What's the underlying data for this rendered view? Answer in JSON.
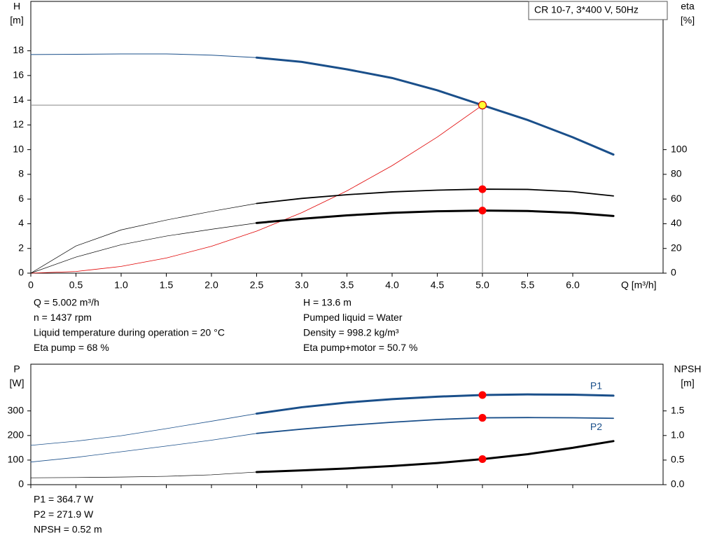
{
  "chart_data": [
    {
      "type": "line",
      "title": "CR 10-7, 3*400 V, 50Hz",
      "ylabel": [
        "H",
        "[m]"
      ],
      "y2label": [
        "eta",
        "[%]"
      ],
      "xlabel": "Q [m³/h]",
      "xlim": [
        0,
        7
      ],
      "xticks": [
        0,
        0.5,
        {
          "value": 1,
          "label": "1.0"
        },
        1.5,
        {
          "value": 2,
          "label": "2.0"
        },
        2.5,
        {
          "value": 3,
          "label": "3.0"
        },
        3.5,
        {
          "value": 4,
          "label": "4.0"
        },
        4.5,
        {
          "value": 5,
          "label": "5.0"
        },
        5.5,
        {
          "value": 6,
          "label": "6.0"
        }
      ],
      "xtick_labels": true,
      "ylim": [
        0,
        22
      ],
      "yticks": [
        0,
        2,
        4,
        6,
        8,
        10,
        12,
        14,
        16,
        18
      ],
      "y2lim": [
        0,
        220
      ],
      "y2ticks": [
        0,
        20,
        40,
        60,
        80,
        100
      ],
      "series": [
        {
          "color": "#1a4f8a",
          "width": 1,
          "x": [
            0,
            0.5,
            1,
            1.5,
            2,
            2.5
          ],
          "values": [
            17.7,
            17.72,
            17.75,
            17.75,
            17.65,
            17.45
          ]
        },
        {
          "color": "#1a4f8a",
          "width": 3,
          "x": [
            2.5,
            3,
            3.5,
            4,
            4.5,
            5,
            5.5,
            6,
            6.45
          ],
          "values": [
            17.45,
            17.1,
            16.5,
            15.8,
            14.8,
            13.6,
            12.4,
            11.0,
            9.6
          ]
        },
        {
          "color": "#e00000",
          "width": 0.8,
          "x": [
            0,
            0.5,
            1,
            1.5,
            2,
            2.5,
            3,
            3.5,
            4,
            4.5,
            5
          ],
          "values": [
            0,
            0.136,
            0.544,
            1.224,
            2.176,
            3.4,
            4.896,
            6.664,
            8.704,
            11.016,
            13.6
          ]
        },
        {
          "color": "#000000",
          "width": 0.7,
          "axis": "y2",
          "x": [
            0,
            0.5,
            1,
            1.5,
            2,
            2.5
          ],
          "values": [
            0,
            22,
            35,
            43,
            50,
            56.4
          ]
        },
        {
          "color": "#000000",
          "width": 1.8,
          "axis": "y2",
          "x": [
            2.5,
            3,
            3.5,
            4,
            4.5,
            5,
            5.5,
            6,
            6.45
          ],
          "values": [
            56.4,
            60.5,
            63.5,
            65.8,
            67.2,
            68,
            67.8,
            66,
            62.5
          ]
        },
        {
          "color": "#000000",
          "width": 0.7,
          "axis": "y2",
          "x": [
            0,
            0.5,
            1,
            1.5,
            2,
            2.5
          ],
          "values": [
            0,
            13,
            23,
            30,
            35.5,
            40.6
          ]
        },
        {
          "color": "#000000",
          "width": 3,
          "axis": "y2",
          "x": [
            2.5,
            3,
            3.5,
            4,
            4.5,
            5,
            5.5,
            6,
            6.45
          ],
          "values": [
            40.6,
            44,
            46.8,
            48.8,
            50.1,
            50.7,
            50.3,
            48.8,
            46.3
          ]
        }
      ],
      "points": [
        {
          "x": 5.0,
          "y": 13.6,
          "color": "#ffff33",
          "stroke": "#d00000",
          "crosshair": true
        },
        {
          "x": 5.0,
          "y": 68,
          "axis": "y2",
          "color": "#ff0000"
        },
        {
          "x": 5.0,
          "y": 50.7,
          "axis": "y2",
          "color": "#ff0000"
        }
      ],
      "info_left": [
        "Q = 5.002 m³/h",
        "n = 1437 rpm",
        "Liquid temperature during operation = 20 °C",
        "Eta pump = 68 %"
      ],
      "info_right": [
        "H = 13.6 m",
        "Pumped liquid = Water",
        "Density = 998.2 kg/m³",
        "Eta pump+motor = 50.7 %"
      ]
    },
    {
      "type": "line",
      "ylabel": [
        "P",
        "[W]"
      ],
      "y2label": [
        "NPSH",
        "[m]"
      ],
      "xlim": [
        0,
        7
      ],
      "xticks": [
        0,
        0.5,
        1,
        1.5,
        2,
        2.5,
        3,
        3.5,
        4,
        4.5,
        5,
        5.5,
        6
      ],
      "xtick_labels": false,
      "ylim": [
        0,
        490
      ],
      "yticks": [
        0,
        100,
        200,
        300
      ],
      "y2lim": [
        0,
        2.45
      ],
      "y2ticks": [
        {
          "value": 0,
          "label": "0.0"
        },
        0.5,
        {
          "value": 1,
          "label": "1.0"
        },
        1.5
      ],
      "series": [
        {
          "color": "#1a4f8a",
          "width": 0.8,
          "x": [
            0,
            0.5,
            1,
            1.5,
            2,
            2.5
          ],
          "values": [
            160,
            177,
            199,
            228,
            258,
            289
          ]
        },
        {
          "name": "P1",
          "label_side": "above",
          "color": "#1a4f8a",
          "width": 3,
          "x": [
            2.5,
            3,
            3.5,
            4,
            4.5,
            5,
            5.5,
            6,
            6.45
          ],
          "values": [
            289,
            315,
            334,
            348,
            358,
            364.7,
            367,
            366,
            362
          ]
        },
        {
          "color": "#1a4f8a",
          "width": 0.8,
          "x": [
            0,
            0.5,
            1,
            1.5,
            2,
            2.5
          ],
          "values": [
            92,
            111,
            134,
            157,
            181,
            208.5
          ]
        },
        {
          "name": "P2",
          "label_side": "below",
          "color": "#1a4f8a",
          "width": 1.8,
          "x": [
            2.5,
            3,
            3.5,
            4,
            4.5,
            5,
            5.5,
            6,
            6.45
          ],
          "values": [
            208.5,
            226,
            241,
            254,
            265,
            271.9,
            273,
            272,
            270
          ]
        },
        {
          "color": "#000000",
          "width": 0.7,
          "axis": "y2",
          "x": [
            0,
            0.5,
            1,
            1.5,
            2,
            2.5
          ],
          "values": [
            0.14,
            0.145,
            0.155,
            0.17,
            0.2,
            0.257
          ]
        },
        {
          "color": "#000000",
          "width": 3,
          "axis": "y2",
          "x": [
            2.5,
            3,
            3.5,
            4,
            4.5,
            5,
            5.5,
            6,
            6.45
          ],
          "values": [
            0.257,
            0.29,
            0.33,
            0.38,
            0.44,
            0.52,
            0.62,
            0.75,
            0.886
          ]
        }
      ],
      "points": [
        {
          "x": 5.0,
          "y": 364.7,
          "color": "#ff0000"
        },
        {
          "x": 5.0,
          "y": 271.9,
          "color": "#ff0000"
        },
        {
          "x": 5.0,
          "y": 0.52,
          "axis": "y2",
          "color": "#ff0000"
        }
      ],
      "info_left": [
        "P1 = 364.7 W",
        "P2 = 271.9 W",
        "NPSH = 0.52 m"
      ]
    }
  ]
}
